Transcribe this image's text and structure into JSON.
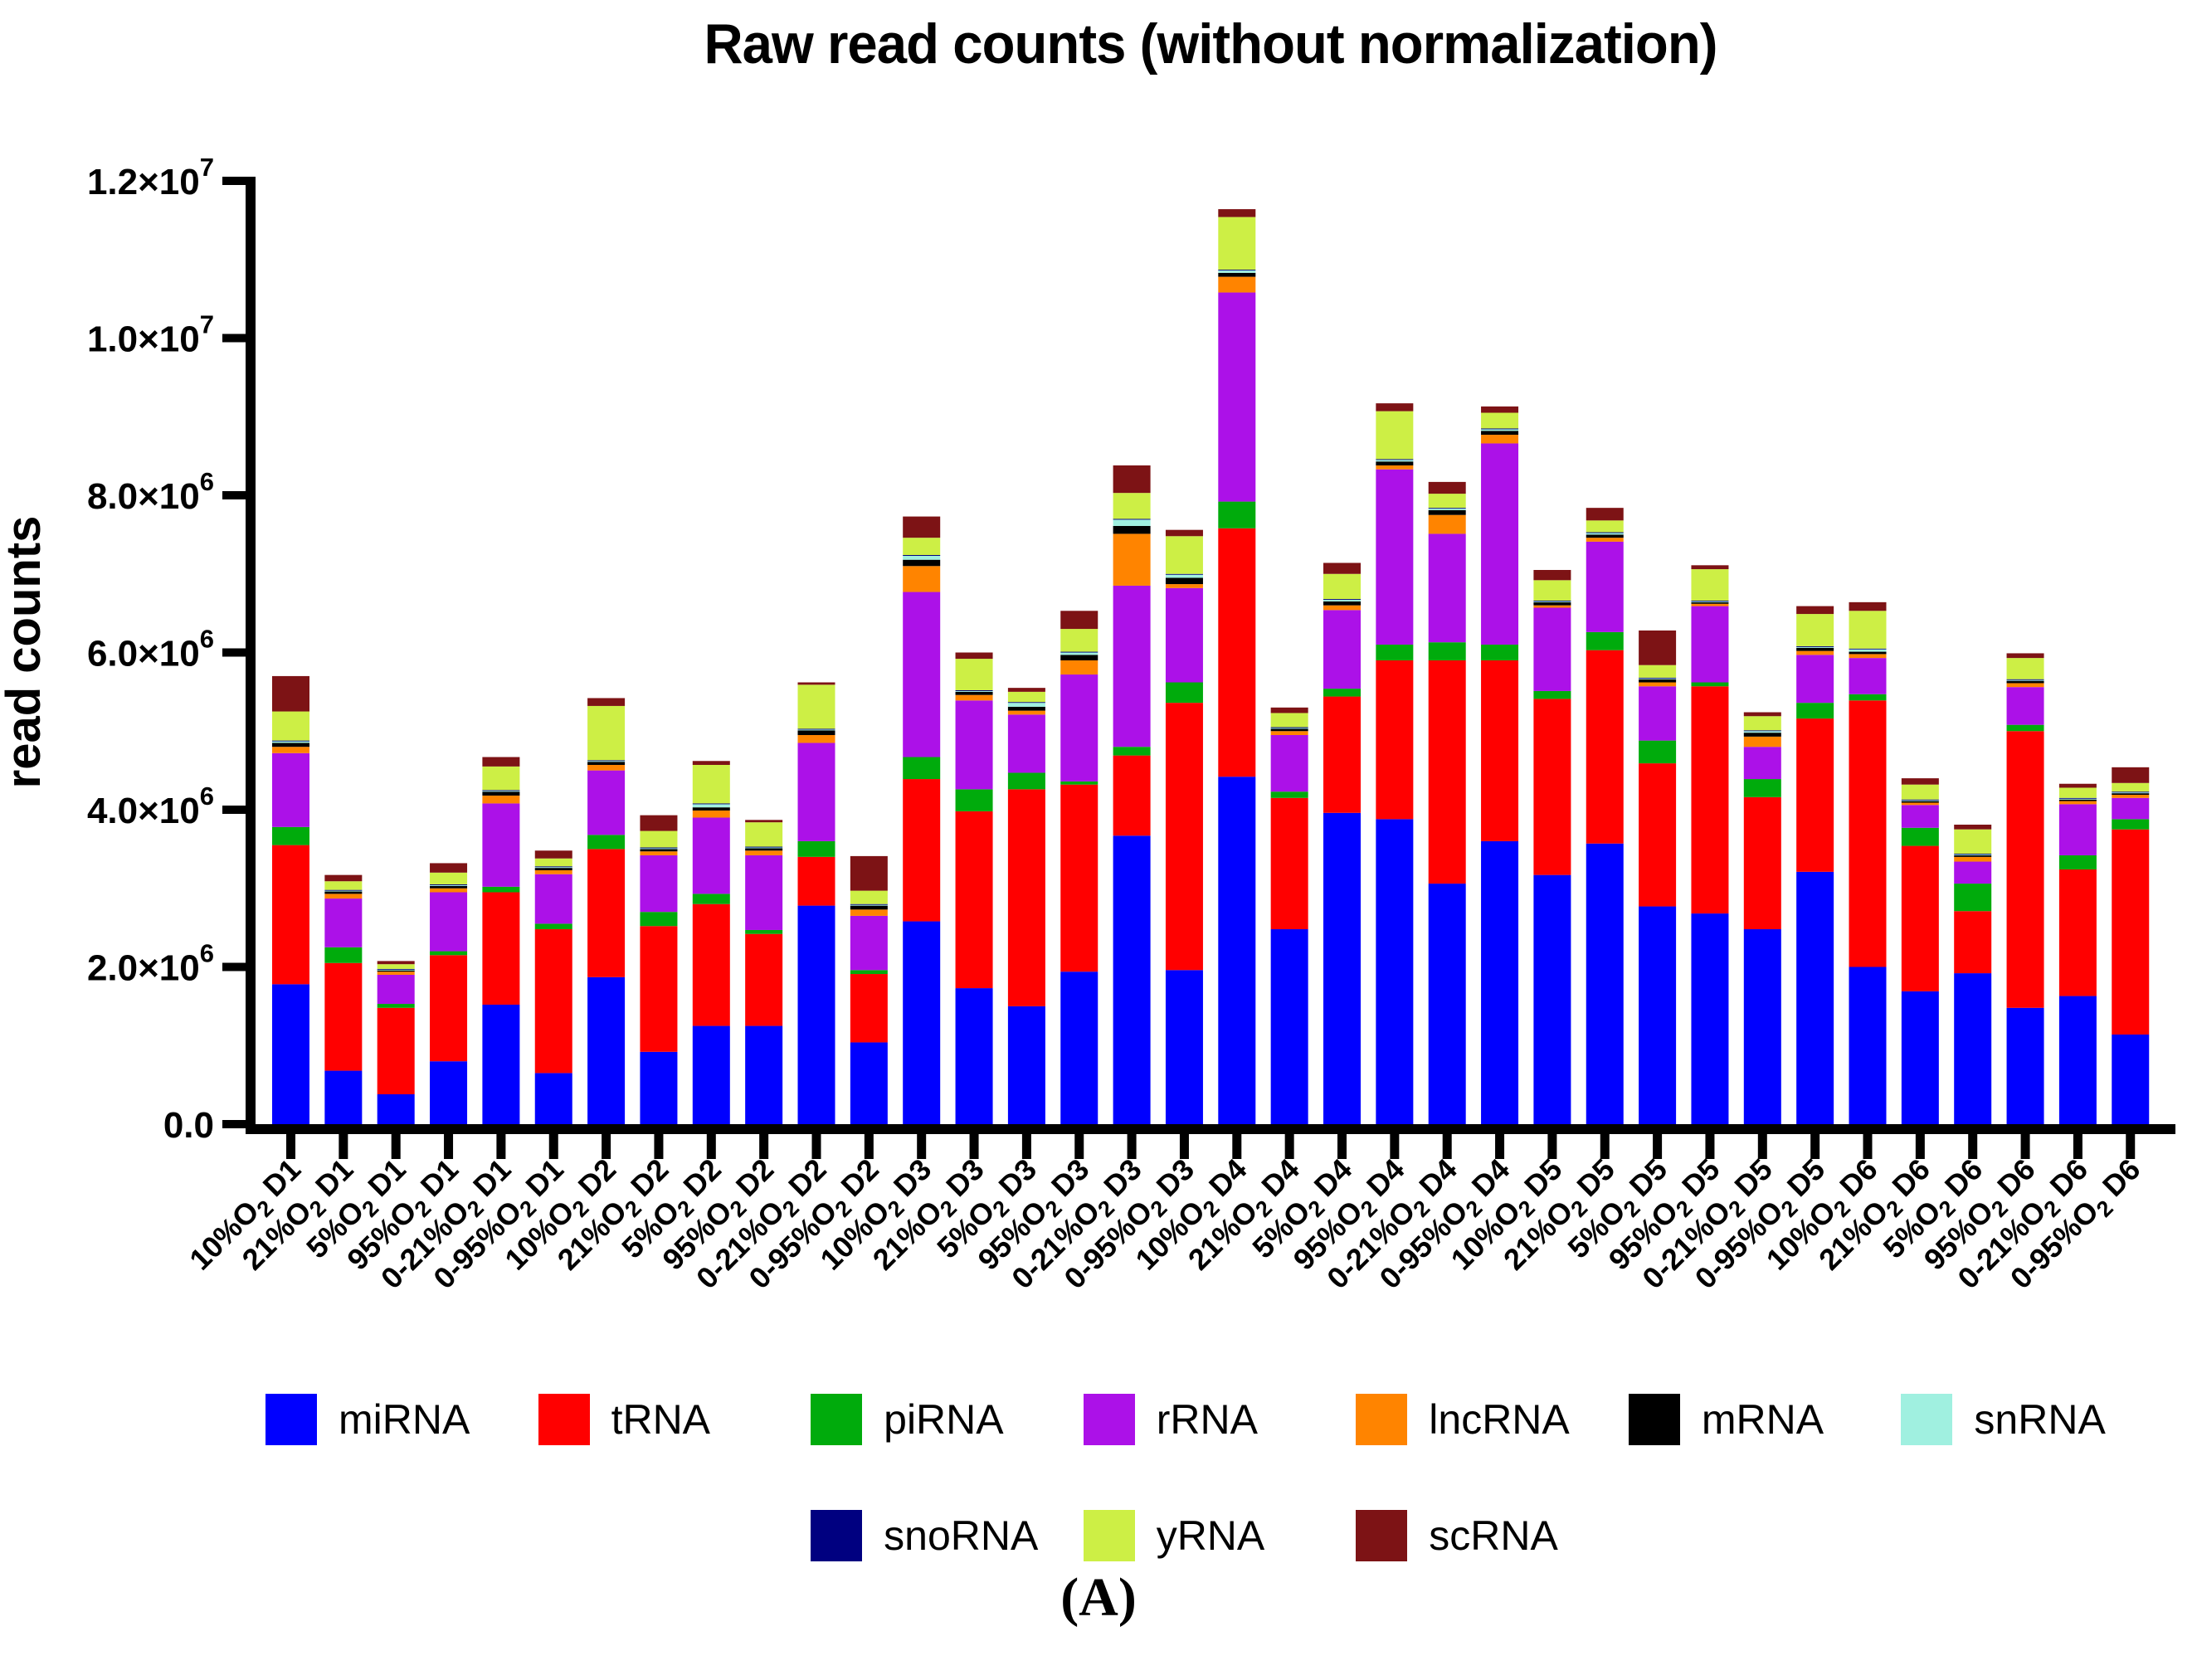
{
  "title": "Raw read counts (without normalization)",
  "caption": "(A)",
  "chart_data": {
    "type": "bar",
    "stacked": true,
    "title": "Raw read counts (without normalization)",
    "xlabel": "",
    "ylabel": "read counts",
    "ylim": [
      0,
      12000000
    ],
    "grid": false,
    "legend_position": "bottom",
    "y_ticks": [
      {
        "value": 0,
        "label": "0.0"
      },
      {
        "value": 2000000,
        "label": "2.0×10^6"
      },
      {
        "value": 4000000,
        "label": "4.0×10^6"
      },
      {
        "value": 6000000,
        "label": "6.0×10^6"
      },
      {
        "value": 8000000,
        "label": "8.0×10^6"
      },
      {
        "value": 10000000,
        "label": "1.0×10^7"
      },
      {
        "value": 12000000,
        "label": "1.2×10^7"
      }
    ],
    "categories": [
      "10%O2 D1",
      "21%O2 D1",
      "5%O2 D1",
      "95%O2 D1",
      "0-21%O2 D1",
      "0-95%O2 D1",
      "10%O2 D2",
      "21%O2 D2",
      "5%O2 D2",
      "95%O2 D2",
      "0-21%O2 D2",
      "0-95%O2 D2",
      "10%O2 D3",
      "21%O2 D3",
      "5%O2 D3",
      "95%O2 D3",
      "0-21%O2 D3",
      "0-95%O2 D3",
      "10%O2 D4",
      "21%O2 D4",
      "5%O2 D4",
      "95%O2 D4",
      "0-21%O2 D4",
      "0-95%O2 D4",
      "10%O2 D5",
      "21%O2 D5",
      "5%O2 D5",
      "95%O2 D5",
      "0-21%O2 D5",
      "0-95%O2 D5",
      "10%O2 D6",
      "21%O2 D6",
      "5%O2 D6",
      "95%O2 D6",
      "0-21%O2 D6",
      "0-95%O2 D6"
    ],
    "series": [
      {
        "name": "miRNA",
        "color": "#0000FF",
        "values": [
          1780000,
          680000,
          380000,
          800000,
          1520000,
          650000,
          1870000,
          920000,
          1250000,
          1250000,
          2780000,
          1040000,
          2580000,
          1730000,
          1500000,
          1940000,
          3670000,
          1960000,
          4420000,
          2480000,
          3960000,
          3880000,
          3060000,
          3600000,
          3170000,
          3570000,
          2770000,
          2680000,
          2480000,
          3210000,
          2000000,
          1690000,
          1920000,
          1480000,
          1630000,
          1140000
        ]
      },
      {
        "name": "tRNA",
        "color": "#FF0000",
        "values": [
          1770000,
          1370000,
          1100000,
          1350000,
          1430000,
          1830000,
          1630000,
          1600000,
          1550000,
          1170000,
          620000,
          870000,
          1810000,
          2250000,
          2760000,
          2380000,
          1020000,
          3400000,
          3160000,
          1670000,
          1480000,
          2020000,
          2840000,
          2300000,
          2240000,
          2460000,
          1820000,
          2890000,
          1680000,
          1950000,
          3390000,
          1850000,
          790000,
          3520000,
          1610000,
          2610000
        ]
      },
      {
        "name": "piRNA",
        "color": "#00AB0C",
        "values": [
          230000,
          200000,
          50000,
          50000,
          70000,
          70000,
          180000,
          180000,
          130000,
          50000,
          200000,
          50000,
          280000,
          280000,
          210000,
          40000,
          110000,
          260000,
          340000,
          80000,
          100000,
          200000,
          230000,
          200000,
          100000,
          230000,
          290000,
          50000,
          230000,
          200000,
          80000,
          230000,
          350000,
          80000,
          180000,
          130000
        ]
      },
      {
        "name": "rRNA",
        "color": "#AC11E8",
        "values": [
          940000,
          620000,
          370000,
          750000,
          1060000,
          630000,
          820000,
          720000,
          970000,
          950000,
          1250000,
          690000,
          2100000,
          1130000,
          740000,
          1360000,
          2050000,
          1200000,
          2660000,
          720000,
          1000000,
          2230000,
          1380000,
          2560000,
          1060000,
          1150000,
          690000,
          970000,
          410000,
          610000,
          460000,
          290000,
          280000,
          480000,
          650000,
          270000
        ]
      },
      {
        "name": "lncRNA",
        "color": "#FF8400",
        "values": [
          80000,
          60000,
          40000,
          50000,
          100000,
          50000,
          70000,
          50000,
          90000,
          60000,
          100000,
          80000,
          330000,
          70000,
          50000,
          180000,
          660000,
          50000,
          200000,
          50000,
          60000,
          50000,
          240000,
          110000,
          30000,
          50000,
          50000,
          30000,
          130000,
          50000,
          50000,
          30000,
          60000,
          50000,
          40000,
          40000
        ]
      },
      {
        "name": "mRNA",
        "color": "#000000",
        "values": [
          50000,
          30000,
          20000,
          30000,
          50000,
          30000,
          40000,
          30000,
          40000,
          30000,
          60000,
          50000,
          80000,
          40000,
          50000,
          70000,
          100000,
          80000,
          50000,
          30000,
          50000,
          50000,
          60000,
          50000,
          40000,
          40000,
          40000,
          20000,
          50000,
          40000,
          30000,
          20000,
          20000,
          30000,
          20000,
          20000
        ]
      },
      {
        "name": "snRNA",
        "color": "#A0F0E0",
        "values": [
          20000,
          10000,
          5000,
          10000,
          10000,
          10000,
          10000,
          10000,
          40000,
          10000,
          10000,
          10000,
          50000,
          10000,
          50000,
          30000,
          80000,
          40000,
          30000,
          10000,
          20000,
          20000,
          20000,
          20000,
          10000,
          20000,
          10000,
          10000,
          20000,
          10000,
          30000,
          10000,
          10000,
          10000,
          10000,
          10000
        ]
      },
      {
        "name": "snoRNA",
        "color": "#000080",
        "values": [
          10000,
          10000,
          10000,
          10000,
          10000,
          10000,
          10000,
          10000,
          10000,
          10000,
          10000,
          10000,
          10000,
          10000,
          10000,
          10000,
          10000,
          10000,
          10000,
          10000,
          10000,
          10000,
          10000,
          10000,
          10000,
          10000,
          10000,
          10000,
          10000,
          10000,
          10000,
          10000,
          10000,
          10000,
          10000,
          10000
        ]
      },
      {
        "name": "yRNA",
        "color": "#CDEF45",
        "values": [
          370000,
          110000,
          60000,
          150000,
          300000,
          100000,
          690000,
          210000,
          490000,
          310000,
          560000,
          170000,
          220000,
          400000,
          130000,
          290000,
          330000,
          480000,
          670000,
          180000,
          320000,
          610000,
          180000,
          200000,
          260000,
          150000,
          160000,
          400000,
          180000,
          410000,
          480000,
          190000,
          310000,
          270000,
          130000,
          110000
        ]
      },
      {
        "name": "scRNA",
        "color": "#7D1315",
        "values": [
          450000,
          80000,
          40000,
          120000,
          120000,
          100000,
          100000,
          200000,
          50000,
          30000,
          30000,
          440000,
          270000,
          80000,
          50000,
          230000,
          350000,
          80000,
          100000,
          70000,
          140000,
          100000,
          150000,
          80000,
          130000,
          160000,
          440000,
          50000,
          50000,
          100000,
          110000,
          80000,
          60000,
          60000,
          50000,
          200000
        ]
      }
    ],
    "legend": {
      "row1": [
        "miRNA",
        "tRNA",
        "piRNA",
        "rRNA",
        "lncRNA",
        "mRNA",
        "snRNA"
      ],
      "row2": [
        "snoRNA",
        "yRNA",
        "scRNA"
      ]
    }
  }
}
